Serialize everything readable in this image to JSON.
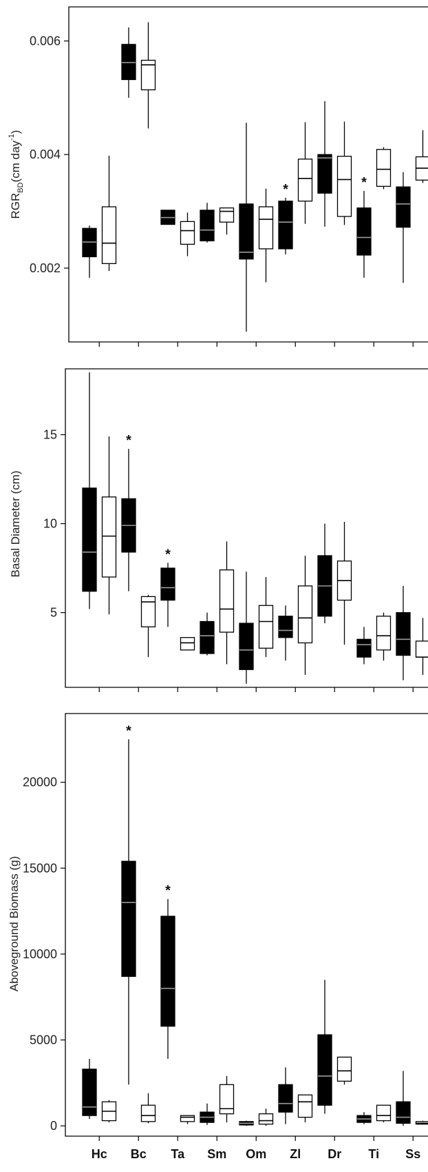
{
  "x_categories": [
    "Hc",
    "Bc",
    "Ta",
    "Sm",
    "Om",
    "Zl",
    "Dr",
    "Ti",
    "Ss"
  ],
  "colors": {
    "filled": "#000000",
    "open": "#ffffff",
    "line": "#000000"
  },
  "chart_data": [
    {
      "type": "box",
      "ylabel": "RGR",
      "ylabel_sub": "BD",
      "ylabel_units": "(cm day",
      "ylabel_exp": "-1",
      "ylabel_close": ")",
      "ylim": [
        0.0007,
        0.0066
      ],
      "yticks": [
        0.002,
        0.004,
        0.006
      ],
      "ytick_labels": [
        "0.002",
        "0.004",
        "0.006"
      ],
      "boxes": [
        {
          "fill": "black",
          "min": 0.00183,
          "q1": 0.0022,
          "median": 0.00246,
          "q3": 0.0027,
          "max": 0.00275
        },
        {
          "fill": "white",
          "min": 0.00195,
          "q1": 0.00208,
          "median": 0.00244,
          "q3": 0.00308,
          "max": 0.00398
        },
        {
          "fill": "black",
          "min": 0.005,
          "q1": 0.00532,
          "median": 0.00562,
          "q3": 0.00594,
          "max": 0.00624
        },
        {
          "fill": "white",
          "min": 0.00446,
          "q1": 0.00514,
          "median": 0.00558,
          "q3": 0.00566,
          "max": 0.00633
        },
        {
          "fill": "black",
          "min": 0.00277,
          "q1": 0.00277,
          "median": 0.00289,
          "q3": 0.00302,
          "max": 0.00302
        },
        {
          "fill": "white",
          "min": 0.00221,
          "q1": 0.00242,
          "median": 0.00266,
          "q3": 0.00282,
          "max": 0.00298
        },
        {
          "fill": "black",
          "min": 0.00245,
          "q1": 0.00248,
          "median": 0.00267,
          "q3": 0.00302,
          "max": 0.00315
        },
        {
          "fill": "white",
          "min": 0.00259,
          "q1": 0.00281,
          "median": 0.003,
          "q3": 0.00306,
          "max": 0.00306
        },
        {
          "fill": "black",
          "min": 0.00088,
          "q1": 0.00216,
          "median": 0.00228,
          "q3": 0.00313,
          "max": 0.00456
        },
        {
          "fill": "white",
          "min": 0.00175,
          "q1": 0.00234,
          "median": 0.00286,
          "q3": 0.00308,
          "max": 0.0034
        },
        {
          "fill": "black",
          "min": 0.00224,
          "q1": 0.00234,
          "median": 0.00281,
          "q3": 0.00318,
          "max": 0.00324,
          "star": true
        },
        {
          "fill": "white",
          "min": 0.00278,
          "q1": 0.00318,
          "median": 0.00358,
          "q3": 0.00392,
          "max": 0.00457
        },
        {
          "fill": "black",
          "min": 0.00273,
          "q1": 0.00332,
          "median": 0.00394,
          "q3": 0.004,
          "max": 0.00494
        },
        {
          "fill": "white",
          "min": 0.00276,
          "q1": 0.00291,
          "median": 0.00356,
          "q3": 0.00397,
          "max": 0.00458
        },
        {
          "fill": "black",
          "min": 0.00183,
          "q1": 0.00223,
          "median": 0.00254,
          "q3": 0.00306,
          "max": 0.00336,
          "star": true
        },
        {
          "fill": "white",
          "min": 0.00339,
          "q1": 0.00344,
          "median": 0.00374,
          "q3": 0.00409,
          "max": 0.00413
        },
        {
          "fill": "black",
          "min": 0.00174,
          "q1": 0.00272,
          "median": 0.00313,
          "q3": 0.00343,
          "max": 0.00369
        },
        {
          "fill": "white",
          "min": 0.0035,
          "q1": 0.00355,
          "median": 0.00376,
          "q3": 0.00396,
          "max": 0.00443
        }
      ]
    },
    {
      "type": "box",
      "ylabel": "Basal Diameter (cm)",
      "ylim": [
        0.8,
        18.7
      ],
      "yticks": [
        5,
        10,
        15
      ],
      "ytick_labels": [
        "5",
        "10",
        "15"
      ],
      "boxes": [
        {
          "fill": "black",
          "min": 5.2,
          "q1": 6.2,
          "median": 8.4,
          "q3": 12.0,
          "max": 18.5
        },
        {
          "fill": "white",
          "min": 4.9,
          "q1": 7.0,
          "median": 9.3,
          "q3": 11.5,
          "max": 14.9
        },
        {
          "fill": "black",
          "min": 6.2,
          "q1": 8.4,
          "median": 9.9,
          "q3": 11.4,
          "max": 14.2,
          "star": true
        },
        {
          "fill": "white",
          "min": 2.5,
          "q1": 4.2,
          "median": 5.6,
          "q3": 5.9,
          "max": 6.0
        },
        {
          "fill": "black",
          "min": 4.2,
          "q1": 5.7,
          "median": 6.4,
          "q3": 7.5,
          "max": 7.8,
          "star": true
        },
        {
          "fill": "white",
          "min": 2.9,
          "q1": 2.9,
          "median": 3.3,
          "q3": 3.6,
          "max": 3.6
        },
        {
          "fill": "black",
          "min": 2.6,
          "q1": 2.7,
          "median": 3.7,
          "q3": 4.5,
          "max": 5.0
        },
        {
          "fill": "white",
          "min": 2.1,
          "q1": 3.9,
          "median": 5.2,
          "q3": 7.4,
          "max": 9.0
        },
        {
          "fill": "black",
          "min": 1.0,
          "q1": 1.8,
          "median": 2.9,
          "q3": 4.4,
          "max": 7.3
        },
        {
          "fill": "white",
          "min": 2.5,
          "q1": 3.0,
          "median": 4.5,
          "q3": 5.4,
          "max": 7.0
        },
        {
          "fill": "black",
          "min": 2.3,
          "q1": 3.6,
          "median": 4.0,
          "q3": 4.8,
          "max": 5.4
        },
        {
          "fill": "white",
          "min": 1.5,
          "q1": 3.3,
          "median": 4.7,
          "q3": 6.5,
          "max": 8.2
        },
        {
          "fill": "black",
          "min": 4.4,
          "q1": 4.8,
          "median": 6.5,
          "q3": 8.2,
          "max": 10.0
        },
        {
          "fill": "white",
          "min": 3.2,
          "q1": 5.7,
          "median": 6.8,
          "q3": 7.9,
          "max": 10.1
        },
        {
          "fill": "black",
          "min": 2.1,
          "q1": 2.5,
          "median": 3.2,
          "q3": 3.5,
          "max": 4.2
        },
        {
          "fill": "white",
          "min": 2.3,
          "q1": 2.9,
          "median": 3.7,
          "q3": 4.8,
          "max": 5.0
        },
        {
          "fill": "black",
          "min": 1.2,
          "q1": 2.6,
          "median": 3.5,
          "q3": 5.0,
          "max": 6.5
        },
        {
          "fill": "white",
          "min": 1.5,
          "q1": 2.5,
          "median": 2.5,
          "q3": 3.4,
          "max": 4.7
        }
      ]
    },
    {
      "type": "box",
      "ylabel": "Aboveground Biomass (g)",
      "ylim": [
        -600,
        24000
      ],
      "yticks": [
        0,
        5000,
        10000,
        15000,
        20000
      ],
      "ytick_labels": [
        "0",
        "5000",
        "10000",
        "15000",
        "20000"
      ],
      "boxes": [
        {
          "fill": "black",
          "min": 400,
          "q1": 600,
          "median": 1100,
          "q3": 3300,
          "max": 3900
        },
        {
          "fill": "white",
          "min": 200,
          "q1": 300,
          "median": 850,
          "q3": 1400,
          "max": 1500
        },
        {
          "fill": "black",
          "min": 2400,
          "q1": 8700,
          "median": 13000,
          "q3": 15400,
          "max": 22500,
          "star": true
        },
        {
          "fill": "white",
          "min": 150,
          "q1": 250,
          "median": 600,
          "q3": 1200,
          "max": 1900
        },
        {
          "fill": "black",
          "min": 3900,
          "q1": 5800,
          "median": 8000,
          "q3": 12200,
          "max": 13200,
          "star": true
        },
        {
          "fill": "white",
          "min": 100,
          "q1": 250,
          "median": 500,
          "q3": 600,
          "max": 600
        },
        {
          "fill": "black",
          "min": 50,
          "q1": 200,
          "median": 500,
          "q3": 800,
          "max": 1300
        },
        {
          "fill": "white",
          "min": 200,
          "q1": 700,
          "median": 1000,
          "q3": 2400,
          "max": 2900
        },
        {
          "fill": "black",
          "min": 0,
          "q1": 50,
          "median": 150,
          "q3": 250,
          "max": 300
        },
        {
          "fill": "white",
          "min": 0,
          "q1": 100,
          "median": 300,
          "q3": 700,
          "max": 1000
        },
        {
          "fill": "black",
          "min": 100,
          "q1": 800,
          "median": 1300,
          "q3": 2400,
          "max": 3400
        },
        {
          "fill": "white",
          "min": 200,
          "q1": 500,
          "median": 1400,
          "q3": 1800,
          "max": 1800
        },
        {
          "fill": "black",
          "min": 700,
          "q1": 1200,
          "median": 2900,
          "q3": 5300,
          "max": 8500
        },
        {
          "fill": "white",
          "min": 2400,
          "q1": 2600,
          "median": 3200,
          "q3": 4000,
          "max": 4000
        },
        {
          "fill": "black",
          "min": 100,
          "q1": 200,
          "median": 400,
          "q3": 600,
          "max": 800
        },
        {
          "fill": "white",
          "min": 200,
          "q1": 300,
          "median": 600,
          "q3": 1200,
          "max": 1200
        },
        {
          "fill": "black",
          "min": 0,
          "q1": 150,
          "median": 500,
          "q3": 1400,
          "max": 3200
        },
        {
          "fill": "white",
          "min": 100,
          "q1": 100,
          "median": 150,
          "q3": 250,
          "max": 300
        }
      ]
    }
  ]
}
